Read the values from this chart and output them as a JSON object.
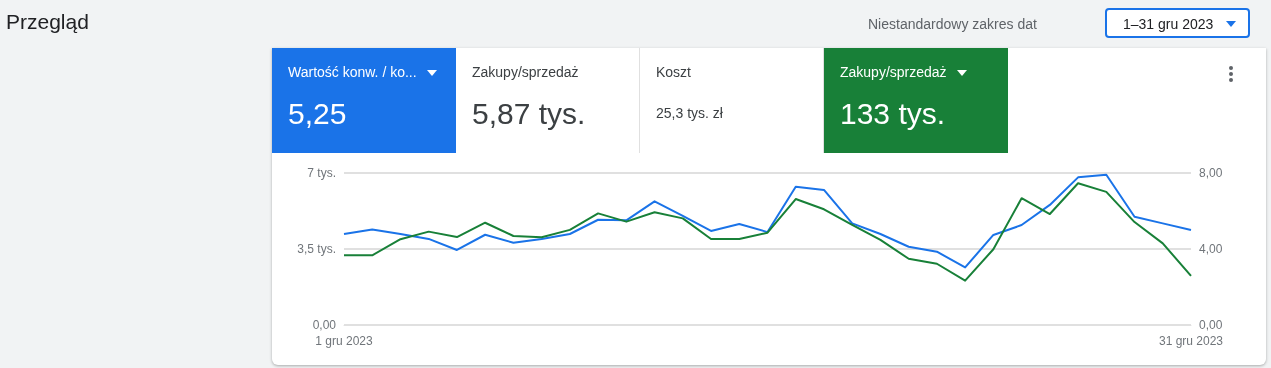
{
  "chart_data": {
    "type": "line",
    "title": "Przegląd",
    "categories": [
      "1 gru 2023",
      null,
      null,
      null,
      null,
      null,
      null,
      null,
      null,
      null,
      null,
      null,
      null,
      null,
      null,
      null,
      null,
      null,
      null,
      null,
      null,
      null,
      null,
      null,
      null,
      null,
      null,
      null,
      null,
      null,
      "31 gru 2023"
    ],
    "series": [
      {
        "color": "#1a73e8",
        "axis": "y2",
        "values": [
          4.79,
          5.03,
          4.79,
          4.53,
          3.95,
          4.75,
          4.33,
          4.53,
          4.79,
          5.54,
          5.51,
          6.51,
          5.74,
          4.95,
          5.32,
          4.89,
          7.28,
          7.11,
          5.35,
          4.79,
          4.12,
          3.86,
          3.03,
          4.74,
          5.26,
          6.32,
          7.77,
          7.91,
          5.7,
          5.35,
          5.0
        ]
      },
      {
        "color": "#188038",
        "values": [
          3.21,
          3.21,
          3.95,
          4.3,
          4.05,
          4.71,
          4.1,
          4.04,
          4.38,
          5.14,
          4.76,
          5.19,
          4.91,
          3.96,
          3.96,
          4.25,
          5.8,
          5.33,
          4.61,
          3.92,
          3.05,
          2.82,
          2.04,
          3.49,
          5.84,
          5.11,
          6.53,
          6.13,
          4.74,
          3.76,
          2.26
        ]
      }
    ],
    "ylim": [
      0,
      7
    ],
    "yticks": [
      {
        "value": 0,
        "label": "0,00"
      },
      {
        "value": 3.5,
        "label": "3,5 tys."
      },
      {
        "value": 7,
        "label": "7 tys."
      }
    ],
    "y2lim": [
      0,
      8
    ],
    "y2ticks": [
      {
        "value": 0,
        "label": "0,00"
      },
      {
        "value": 4,
        "label": "4,00"
      },
      {
        "value": 8,
        "label": "8,00"
      }
    ],
    "grid": "y",
    "marker": "none",
    "line_style": "solid",
    "annotations": [
      "Wartość konw. / ko...",
      "5,25",
      "Zakupy/sprzedaż",
      "5,87 tys.",
      "Koszt",
      "25,3 tys. zł",
      "Zakupy/sprzedaż",
      "133 tys.",
      "Niestandardowy zakres dat",
      "1–31 gru 2023"
    ]
  }
}
